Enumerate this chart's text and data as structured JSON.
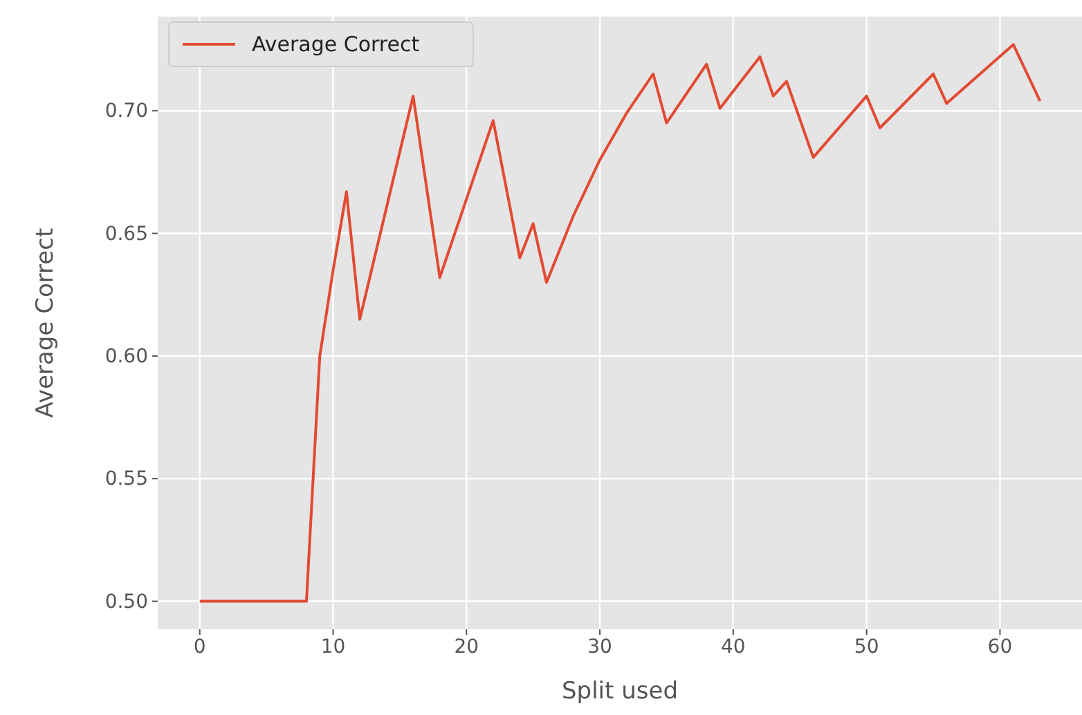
{
  "chart_data": {
    "type": "line",
    "xlabel": "Split used",
    "ylabel": "Average Correct",
    "xlim": [
      -3.15,
      66.15
    ],
    "xticks": [
      0,
      10,
      20,
      30,
      40,
      50,
      60
    ],
    "ylim": [
      0.4886,
      0.7384
    ],
    "yticks": [
      {
        "value": 0.5,
        "label": "0.50"
      },
      {
        "value": 0.55,
        "label": "0.55"
      },
      {
        "value": 0.6,
        "label": "0.60"
      },
      {
        "value": 0.65,
        "label": "0.65"
      },
      {
        "value": 0.7,
        "label": "0.70"
      }
    ],
    "grid": true,
    "legend": "top left",
    "series": [
      {
        "name": "Average Correct",
        "color": "#e24a33",
        "x": [
          0,
          8,
          9,
          10,
          11,
          12,
          16,
          18,
          22,
          24,
          25,
          26,
          28,
          30,
          32,
          34,
          35,
          38,
          39,
          42,
          43,
          44,
          46,
          50,
          51,
          55,
          56,
          61,
          63
        ],
        "values": [
          0.5,
          0.5,
          0.6,
          0.635,
          0.667,
          0.615,
          0.706,
          0.632,
          0.696,
          0.64,
          0.654,
          0.63,
          0.657,
          0.68,
          0.699,
          0.715,
          0.695,
          0.719,
          0.701,
          0.722,
          0.706,
          0.712,
          0.681,
          0.706,
          0.693,
          0.715,
          0.703,
          0.727,
          0.704
        ]
      }
    ]
  }
}
